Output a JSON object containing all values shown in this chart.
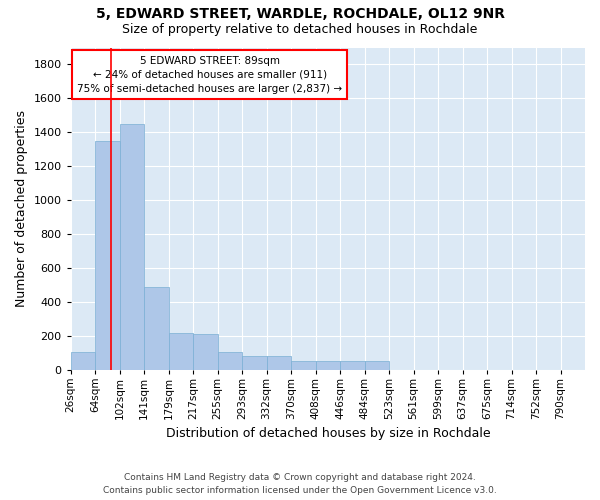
{
  "title1": "5, EDWARD STREET, WARDLE, ROCHDALE, OL12 9NR",
  "title2": "Size of property relative to detached houses in Rochdale",
  "xlabel": "Distribution of detached houses by size in Rochdale",
  "ylabel": "Number of detached properties",
  "bar_color": "#aec7e8",
  "bar_edge_color": "#7aafd4",
  "background_color": "#dce9f5",
  "grid_color": "#ffffff",
  "annotation_text1": "5 EDWARD STREET: 89sqm",
  "annotation_text2": "← 24% of detached houses are smaller (911)",
  "annotation_text3": "75% of semi-detached houses are larger (2,837) →",
  "categories": [
    "26sqm",
    "64sqm",
    "102sqm",
    "141sqm",
    "179sqm",
    "217sqm",
    "255sqm",
    "293sqm",
    "332sqm",
    "370sqm",
    "408sqm",
    "446sqm",
    "484sqm",
    "523sqm",
    "561sqm",
    "599sqm",
    "637sqm",
    "675sqm",
    "714sqm",
    "752sqm",
    "790sqm"
  ],
  "values": [
    105,
    1350,
    1450,
    490,
    215,
    210,
    105,
    82,
    78,
    53,
    50,
    50,
    50,
    0,
    0,
    0,
    0,
    0,
    0,
    0,
    0
  ],
  "property_bar_index": 1,
  "ylim": [
    0,
    1900
  ],
  "yticks": [
    0,
    200,
    400,
    600,
    800,
    1000,
    1200,
    1400,
    1600,
    1800
  ],
  "footer1": "Contains HM Land Registry data © Crown copyright and database right 2024.",
  "footer2": "Contains public sector information licensed under the Open Government Licence v3.0."
}
